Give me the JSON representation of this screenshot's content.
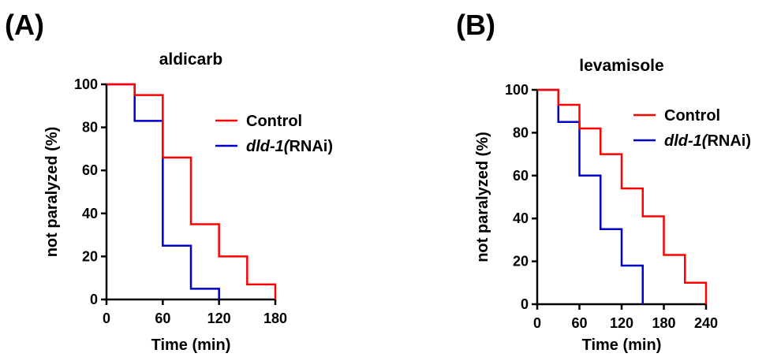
{
  "panels": [
    {
      "label": "(A)"
    },
    {
      "label": "(B)"
    }
  ],
  "chart_data": [
    {
      "type": "line",
      "step": true,
      "title": "aldicarb",
      "xlabel": "Time (min)",
      "ylabel": "not paralyzed (%)",
      "xlim": [
        0,
        180
      ],
      "ylim": [
        0,
        100
      ],
      "xticks": [
        0,
        60,
        120,
        180
      ],
      "yticks": [
        0,
        20,
        40,
        60,
        80,
        100
      ],
      "legend_position": "top-right",
      "series": [
        {
          "name": "Control",
          "legend_italic": "",
          "legend_rest": "Control",
          "color": "#ff0000",
          "x": [
            0,
            30,
            60,
            90,
            120,
            150,
            180
          ],
          "y": [
            100,
            95,
            66,
            35,
            20,
            7,
            0
          ]
        },
        {
          "name": "dld-1(RNAi)",
          "legend_italic": "dld-1(",
          "legend_rest": "RNAi)",
          "color": "#0000cc",
          "x": [
            0,
            30,
            60,
            90,
            120
          ],
          "y": [
            100,
            83,
            25,
            5,
            0
          ]
        }
      ]
    },
    {
      "type": "line",
      "step": true,
      "title": "levamisole",
      "xlabel": "Time (min)",
      "ylabel": "not paralyzed (%)",
      "xlim": [
        0,
        240
      ],
      "ylim": [
        0,
        100
      ],
      "xticks": [
        0,
        60,
        120,
        180,
        240
      ],
      "yticks": [
        0,
        20,
        40,
        60,
        80,
        100
      ],
      "legend_position": "top-right",
      "series": [
        {
          "name": "Control",
          "legend_italic": "",
          "legend_rest": "Control",
          "color": "#ff0000",
          "x": [
            0,
            30,
            60,
            90,
            120,
            150,
            180,
            210,
            240
          ],
          "y": [
            100,
            93,
            82,
            70,
            54,
            41,
            23,
            10,
            0
          ]
        },
        {
          "name": "dld-1(RNAi)",
          "legend_italic": "dld-1(",
          "legend_rest": "RNAi)",
          "color": "#0000cc",
          "x": [
            0,
            30,
            60,
            90,
            120,
            150
          ],
          "y": [
            100,
            85,
            60,
            35,
            18,
            0
          ]
        }
      ]
    }
  ]
}
